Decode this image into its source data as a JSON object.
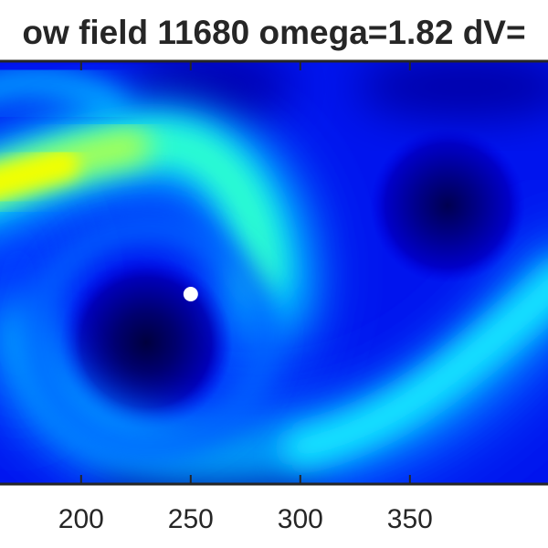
{
  "chart_data": {
    "type": "heatmap",
    "title": "ow field 11680 omega=1.82 dV=",
    "xlabel": "",
    "ylabel": "",
    "colormap": "jet",
    "x_visible_range": [
      163,
      413
    ],
    "x_ticks": [
      200,
      250,
      300,
      350
    ],
    "x_tick_labels": [
      "200",
      "250",
      "300",
      "350"
    ],
    "marker": {
      "x": 250,
      "color": "#ffffff"
    },
    "frame_color": "#262626",
    "grid": false,
    "legend": "none"
  }
}
